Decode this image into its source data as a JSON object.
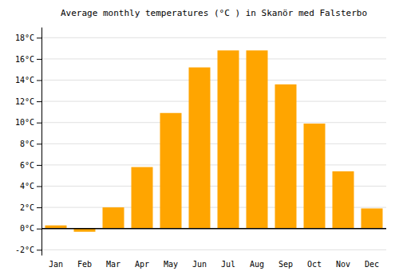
{
  "chart_data": {
    "type": "bar",
    "title": "Average monthly temperatures (°C ) in Skanör med Falsterbo",
    "categories": [
      "Jan",
      "Feb",
      "Mar",
      "Apr",
      "May",
      "Jun",
      "Jul",
      "Aug",
      "Sep",
      "Oct",
      "Nov",
      "Dec"
    ],
    "values": [
      0.3,
      -0.3,
      2.0,
      5.8,
      10.9,
      15.2,
      16.8,
      16.8,
      13.6,
      9.9,
      5.4,
      1.9
    ],
    "color": "#FFA500",
    "ylim": [
      -2.5,
      19
    ],
    "yticks": [
      {
        "value": -2,
        "label": "-2°C"
      },
      {
        "value": 0,
        "label": "0°C"
      },
      {
        "value": 2,
        "label": "2°C"
      },
      {
        "value": 4,
        "label": "4°C"
      },
      {
        "value": 6,
        "label": "6°C"
      },
      {
        "value": 8,
        "label": "8°C"
      },
      {
        "value": 10,
        "label": "10°C"
      },
      {
        "value": 12,
        "label": "12°C"
      },
      {
        "value": 14,
        "label": "14°C"
      },
      {
        "value": 16,
        "label": "16°C"
      },
      {
        "value": 18,
        "label": "18°C"
      }
    ],
    "grid": true
  }
}
